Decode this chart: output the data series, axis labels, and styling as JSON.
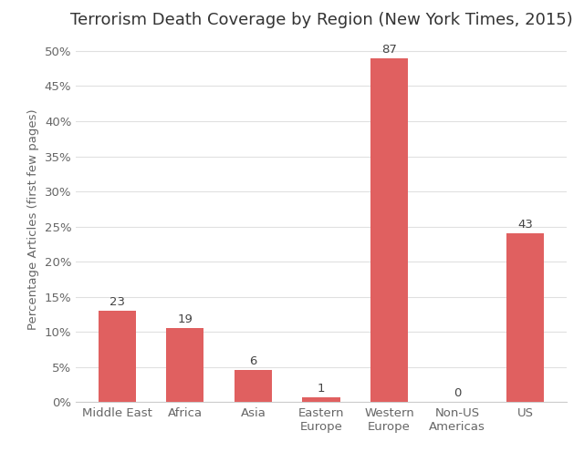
{
  "title": "Terrorism Death Coverage by Region (New York Times, 2015)",
  "categories": [
    "Middle East",
    "Africa",
    "Asia",
    "Eastern\nEurope",
    "Western\nEurope",
    "Non-US\nAmericas",
    "US"
  ],
  "values": [
    13,
    10.5,
    4.5,
    0.7,
    49,
    0,
    24
  ],
  "annotations": [
    "23",
    "19",
    "6",
    "1",
    "87",
    "0",
    "43"
  ],
  "bar_color": "#e06060",
  "ylabel": "Percentage Articles (first few pages)",
  "ylim": [
    0,
    52
  ],
  "yticks": [
    0,
    5,
    10,
    15,
    20,
    25,
    30,
    35,
    40,
    45,
    50
  ],
  "ytick_labels": [
    "0%",
    "5%",
    "10%",
    "15%",
    "20%",
    "25%",
    "30%",
    "35%",
    "40%",
    "45%",
    "50%"
  ],
  "background_color": "#ffffff",
  "title_fontsize": 13,
  "label_fontsize": 9.5,
  "tick_fontsize": 9.5,
  "annotation_fontsize": 9.5,
  "figsize": [
    6.4,
    5.07
  ],
  "dpi": 100
}
